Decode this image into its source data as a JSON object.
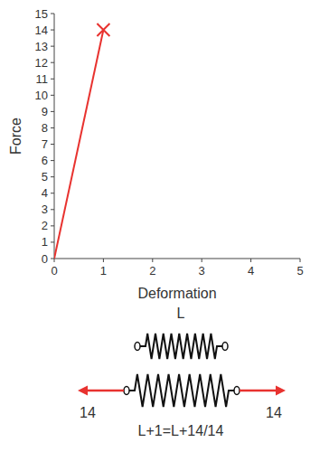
{
  "chart_data": {
    "type": "line",
    "x_label": "Deformation",
    "y_label": "Force",
    "x": [
      0,
      1
    ],
    "series": [
      {
        "type": "line",
        "color": "#e8322f",
        "line_style": "solid",
        "values": [
          0,
          14
        ]
      },
      {
        "type": "scatter",
        "color": "#e8322f",
        "marker": "x",
        "values": [
          null,
          14
        ]
      }
    ],
    "xlim": [
      0,
      5
    ],
    "xticks": [
      0,
      1,
      2,
      3,
      4,
      5
    ],
    "ylim": [
      0,
      15
    ],
    "yticks": [
      0,
      1,
      2,
      3,
      4,
      5,
      6,
      7,
      8,
      9,
      10,
      11,
      12,
      13,
      14,
      15
    ],
    "grid": false
  },
  "diagram": {
    "rest_length_label": "L",
    "forces": [
      14,
      14
    ],
    "stretched_label": "L+1=L+14/14"
  }
}
